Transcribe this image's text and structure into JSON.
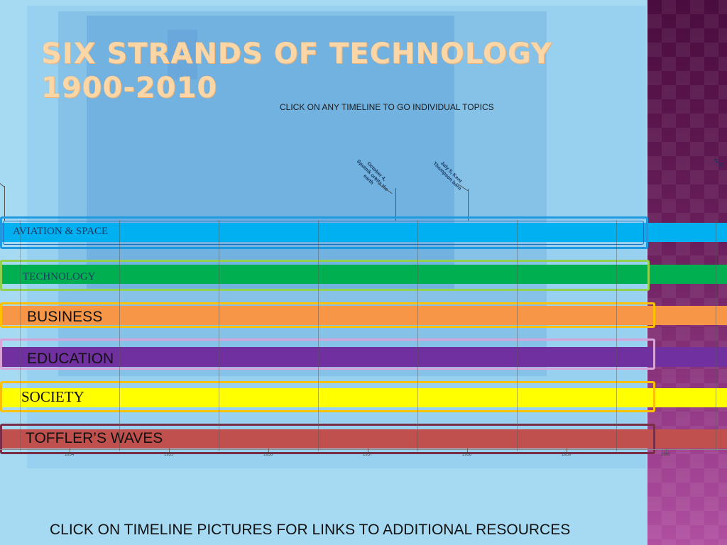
{
  "title": {
    "line1": "SIX STRANDS OF TECHNOLOGY",
    "line2": "1900-2010"
  },
  "instruction_top": "CLICK ON ANY TIMELINE TO GO INDIVIDUAL TOPICS",
  "events": [
    {
      "label": "October 4, Sputnik orbits the earth"
    },
    {
      "label": "July 5, Kent Thompson born"
    },
    {
      "label": "Yu fir"
    }
  ],
  "timeline": {
    "years": [
      "1954",
      "1955",
      "1956",
      "1957",
      "1958",
      "1959",
      "1960"
    ]
  },
  "strands": [
    {
      "label": "AVIATION & SPACE",
      "color": "#00b0f0",
      "frame_color": "#1e9be0"
    },
    {
      "label": "TECHNOLOGY",
      "color": "#00b050",
      "frame_color": "#92d050"
    },
    {
      "label": "BUSINESS",
      "color": "#f79646",
      "frame_color": "#ffc000"
    },
    {
      "label": "EDUCATION",
      "color": "#7030a0",
      "frame_color": "#d9a3d9"
    },
    {
      "label": "SOCIETY",
      "color": "#ffff00",
      "frame_color": "#ffc000"
    },
    {
      "label": "TOFFLER’S WAVES",
      "color": "#c0504d",
      "frame_color": "#7b2c47"
    }
  ],
  "footer": "CLICK ON TIMELINE PICTURES FOR LINKS TO ADDITIONAL RESOURCES",
  "colors": {
    "title": "#fbd7a8",
    "background": "#a8dcf3",
    "right_panel": "#6a1f5c"
  }
}
